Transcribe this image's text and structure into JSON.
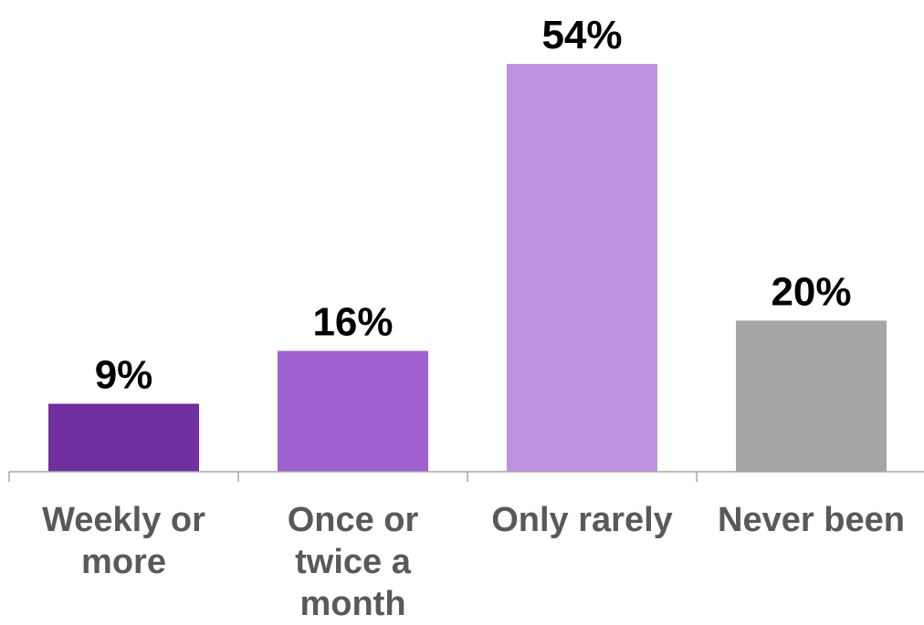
{
  "chart_data": {
    "type": "bar",
    "categories": [
      "Weekly or more",
      "Once or twice a month",
      "Only rarely",
      "Never been"
    ],
    "values": [
      9,
      16,
      54,
      20
    ],
    "value_labels": [
      "9%",
      "16%",
      "54%",
      "20%"
    ],
    "unit": "%",
    "colors": [
      "#7030A0",
      "#A05FCF",
      "#BD92E1",
      "#A6A6A6"
    ],
    "axis_color": "#A6A6A6",
    "title": "",
    "xlabel": "",
    "ylabel": "",
    "ylim": [
      0,
      60
    ],
    "grid": false,
    "legend": "none"
  }
}
